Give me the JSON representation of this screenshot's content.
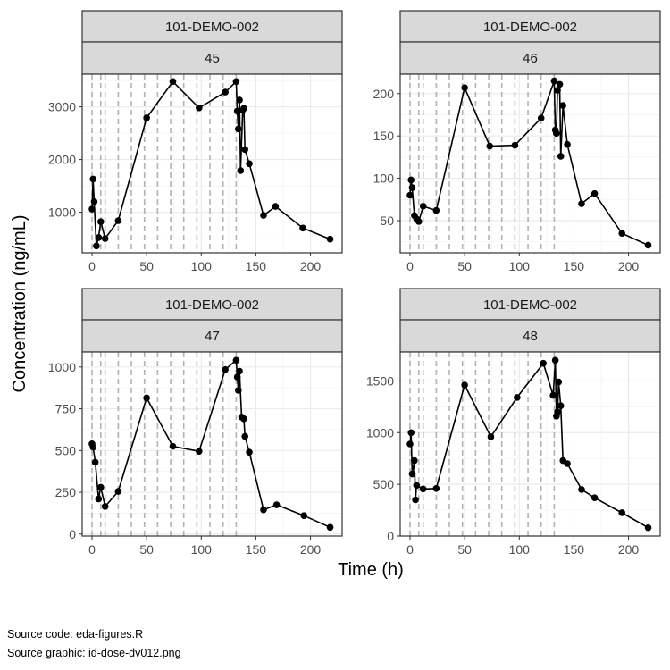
{
  "chart_data": {
    "type": "line",
    "x_label": "Time (h)",
    "y_label": "Concentration (ng/mL)",
    "x_ticks": [
      0,
      50,
      100,
      150,
      200
    ],
    "x_range": [
      -9,
      229
    ],
    "dose_times": [
      0,
      8,
      12,
      24,
      36,
      48,
      60,
      72,
      84,
      96,
      108,
      120,
      132
    ],
    "grid": "on",
    "panels": [
      {
        "strip_top": "101-DEMO-002",
        "strip_bottom": "45",
        "y_range": [
          230,
          3620
        ],
        "y_ticks": [
          1000,
          2000,
          3000
        ],
        "points": [
          [
            0,
            1060
          ],
          [
            1,
            1630
          ],
          [
            2,
            1200
          ],
          [
            4,
            360
          ],
          [
            6,
            520
          ],
          [
            8,
            820
          ],
          [
            12,
            500
          ],
          [
            24,
            840
          ],
          [
            50,
            2790
          ],
          [
            74,
            3480
          ],
          [
            98,
            2980
          ],
          [
            122,
            3280
          ],
          [
            132,
            3480
          ],
          [
            133,
            2920
          ],
          [
            134,
            2580
          ],
          [
            135,
            3130
          ],
          [
            136,
            1790
          ],
          [
            138,
            2940
          ],
          [
            139,
            2970
          ],
          [
            140,
            2190
          ],
          [
            144,
            1920
          ],
          [
            157,
            940
          ],
          [
            168,
            1110
          ],
          [
            193,
            700
          ],
          [
            218,
            490
          ]
        ]
      },
      {
        "strip_top": "101-DEMO-002",
        "strip_bottom": "46",
        "y_range": [
          12,
          223
        ],
        "y_ticks": [
          50,
          100,
          150,
          200
        ],
        "points": [
          [
            0,
            80
          ],
          [
            1,
            98
          ],
          [
            2,
            89
          ],
          [
            4,
            56
          ],
          [
            6,
            52
          ],
          [
            8,
            49
          ],
          [
            12,
            67
          ],
          [
            24,
            62
          ],
          [
            50,
            207
          ],
          [
            73,
            138
          ],
          [
            96,
            139
          ],
          [
            120,
            171
          ],
          [
            132,
            215
          ],
          [
            133,
            157
          ],
          [
            134,
            153
          ],
          [
            135,
            204
          ],
          [
            137,
            211
          ],
          [
            138,
            126
          ],
          [
            140,
            186
          ],
          [
            144,
            140
          ],
          [
            157,
            70
          ],
          [
            169,
            82
          ],
          [
            194,
            35
          ],
          [
            218,
            21
          ]
        ]
      },
      {
        "strip_top": "101-DEMO-002",
        "strip_bottom": "47",
        "y_range": [
          -12,
          1090
        ],
        "y_ticks": [
          0,
          250,
          500,
          750,
          1000
        ],
        "points": [
          [
            0,
            540
          ],
          [
            1,
            520
          ],
          [
            3,
            430
          ],
          [
            6,
            210
          ],
          [
            8,
            280
          ],
          [
            12,
            165
          ],
          [
            24,
            255
          ],
          [
            50,
            815
          ],
          [
            74,
            525
          ],
          [
            98,
            495
          ],
          [
            122,
            985
          ],
          [
            132,
            1040
          ],
          [
            133,
            940
          ],
          [
            134,
            860
          ],
          [
            135,
            975
          ],
          [
            137,
            700
          ],
          [
            139,
            690
          ],
          [
            140,
            585
          ],
          [
            144,
            490
          ],
          [
            157,
            145
          ],
          [
            169,
            175
          ],
          [
            194,
            110
          ],
          [
            218,
            40
          ]
        ]
      },
      {
        "strip_top": "101-DEMO-002",
        "strip_bottom": "48",
        "y_range": [
          0,
          1780
        ],
        "y_ticks": [
          0,
          500,
          1000,
          1500
        ],
        "points": [
          [
            0,
            890
          ],
          [
            1,
            1000
          ],
          [
            2,
            600
          ],
          [
            4,
            730
          ],
          [
            5,
            350
          ],
          [
            6,
            490
          ],
          [
            12,
            455
          ],
          [
            24,
            460
          ],
          [
            50,
            1460
          ],
          [
            74,
            960
          ],
          [
            98,
            1340
          ],
          [
            122,
            1670
          ],
          [
            131,
            1360
          ],
          [
            133,
            1700
          ],
          [
            134,
            1160
          ],
          [
            135,
            1200
          ],
          [
            136,
            1490
          ],
          [
            138,
            1260
          ],
          [
            140,
            730
          ],
          [
            144,
            700
          ],
          [
            157,
            450
          ],
          [
            169,
            370
          ],
          [
            194,
            225
          ],
          [
            218,
            80
          ]
        ]
      }
    ]
  },
  "caption": {
    "line1": "Source code: eda-figures.R",
    "line2": "Source graphic: id-dose-dv012.png"
  }
}
